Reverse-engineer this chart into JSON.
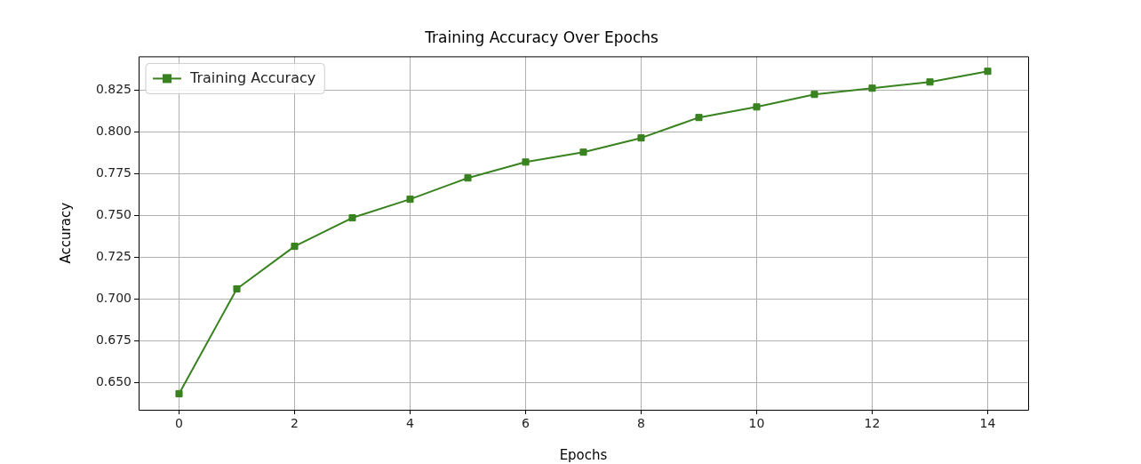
{
  "chart_data": {
    "type": "line",
    "title": "Training Accuracy Over Epochs",
    "xlabel": "Epochs",
    "ylabel": "Accuracy",
    "x": [
      0,
      1,
      2,
      3,
      4,
      5,
      6,
      7,
      8,
      9,
      10,
      11,
      12,
      13,
      14
    ],
    "series": [
      {
        "name": "Training Accuracy",
        "color": "#38821f",
        "values": [
          0.6436,
          0.7062,
          0.7316,
          0.7486,
          0.7597,
          0.7724,
          0.7819,
          0.7878,
          0.7963,
          0.8085,
          0.8148,
          0.8223,
          0.826,
          0.8297,
          0.8361
        ]
      }
    ],
    "xlim": [
      -0.7,
      14.7
    ],
    "xticks": [
      0,
      2,
      4,
      6,
      8,
      10,
      12,
      14
    ],
    "ylim": [
      0.634,
      0.845
    ],
    "yticks": [
      {
        "value": 0.65,
        "label": "0.650"
      },
      {
        "value": 0.675,
        "label": "0.675"
      },
      {
        "value": 0.7,
        "label": "0.700"
      },
      {
        "value": 0.725,
        "label": "0.725"
      },
      {
        "value": 0.75,
        "label": "0.750"
      },
      {
        "value": 0.775,
        "label": "0.775"
      },
      {
        "value": 0.8,
        "label": "0.800"
      },
      {
        "value": 0.825,
        "label": "0.825"
      }
    ],
    "grid": true,
    "legend": "top left",
    "marker": "square",
    "line_style": "solid"
  }
}
